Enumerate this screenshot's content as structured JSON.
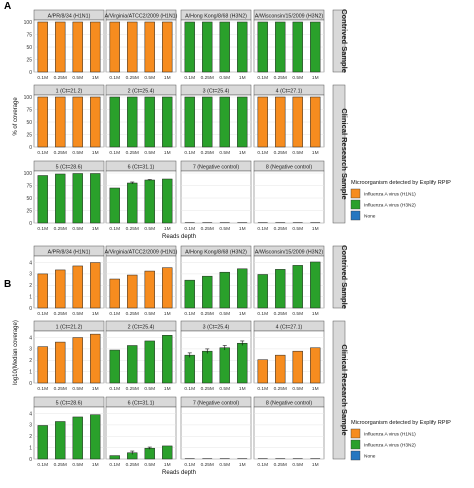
{
  "figure_labels": [
    "A",
    "B"
  ],
  "colors": {
    "H1N1": "#f68c1f",
    "H3N2": "#2aa02b",
    "None": "#2477c0"
  },
  "legend": {
    "title": "Microorganism detected by Explify RPIP",
    "items": [
      {
        "key": "H1N1",
        "label": "Influenza A virus (H1N1)"
      },
      {
        "key": "H3N2",
        "label": "Influenza A virus (H3N2)"
      },
      {
        "key": "None",
        "label": "None"
      }
    ]
  },
  "strip_right": {
    "contrived": "Contrived Sample",
    "clinical": "Clinical Research Sample"
  },
  "chart_data": [
    {
      "type": "bar",
      "panel_label": "A",
      "xlabel": "Reads depth",
      "ylabel": "% of coverage",
      "categories": [
        "0.1M",
        "0.25M",
        "0.5M",
        "1M"
      ],
      "ylim": [
        0,
        100
      ],
      "yticks": [
        0,
        25,
        50,
        75,
        100
      ],
      "facets": [
        {
          "title": "A/PR/8/34 (H1N1)",
          "organism": "H1N1",
          "values": [
            100,
            100,
            100,
            100
          ]
        },
        {
          "title": "A/Virginia/ATCC2/2009 (H1N1)",
          "organism": "H1N1",
          "values": [
            100,
            100,
            100,
            100
          ]
        },
        {
          "title": "A/Hong Kong/8/68 (H3N2)",
          "organism": "H3N2",
          "values": [
            100,
            100,
            100,
            100
          ]
        },
        {
          "title": "A/Wisconsin/15/2009 (H3N2)",
          "organism": "H3N2",
          "values": [
            100,
            100,
            100,
            100
          ]
        },
        {
          "title": "1 (Ct=21.2)",
          "organism": "H1N1",
          "values": [
            100,
            100,
            100,
            100
          ]
        },
        {
          "title": "2 (Ct=25.4)",
          "organism": "H3N2",
          "values": [
            100,
            100,
            100,
            100
          ]
        },
        {
          "title": "3 (Ct=25.4)",
          "organism": "H3N2",
          "values": [
            100,
            100,
            100,
            100
          ]
        },
        {
          "title": "4 (Ct=27.1)",
          "organism": "H1N1",
          "values": [
            100,
            100,
            100,
            100
          ]
        },
        {
          "title": "5 (Ct=28.6)",
          "organism": "H3N2",
          "values": [
            95,
            98,
            99,
            99
          ]
        },
        {
          "title": "6 (Ct=31.1)",
          "organism": "H3N2",
          "values": [
            70,
            80,
            86,
            88
          ],
          "error": [
            0,
            2,
            1,
            0
          ]
        },
        {
          "title": "7 (Negative control)",
          "organism": "None",
          "values": [
            0,
            0,
            0,
            0
          ]
        },
        {
          "title": "8 (Negative control)",
          "organism": "None",
          "values": [
            0,
            0,
            0,
            0
          ]
        }
      ]
    },
    {
      "type": "bar",
      "panel_label": "B",
      "xlabel": "Reads depth",
      "ylabel": "log10(Median coverage)",
      "categories": [
        "0.1M",
        "0.25M",
        "0.5M",
        "1M"
      ],
      "ylim": [
        0,
        4.4
      ],
      "yticks": [
        0,
        1,
        2,
        3,
        4
      ],
      "facets": [
        {
          "title": "A/PR/8/34 (H1N1)",
          "organism": "H1N1",
          "values": [
            3.0,
            3.35,
            3.7,
            4.0
          ]
        },
        {
          "title": "A/Virginia/ATCC2/2009 (H1N1)",
          "organism": "H1N1",
          "values": [
            2.55,
            2.9,
            3.25,
            3.55
          ]
        },
        {
          "title": "A/Hong Kong/8/68 (H3N2)",
          "organism": "H3N2",
          "values": [
            2.45,
            2.8,
            3.15,
            3.45
          ]
        },
        {
          "title": "A/Wisconsin/15/2009 (H3N2)",
          "organism": "H3N2",
          "values": [
            2.95,
            3.4,
            3.75,
            4.05
          ]
        },
        {
          "title": "1 (Ct=21.2)",
          "organism": "H1N1",
          "values": [
            3.2,
            3.6,
            4.0,
            4.3
          ]
        },
        {
          "title": "2 (Ct=25.4)",
          "organism": "H3N2",
          "values": [
            2.9,
            3.3,
            3.7,
            4.2
          ]
        },
        {
          "title": "3 (Ct=25.4)",
          "organism": "H3N2",
          "values": [
            2.45,
            2.8,
            3.1,
            3.5
          ],
          "error": [
            0.2,
            0.2,
            0.2,
            0.2
          ]
        },
        {
          "title": "4 (Ct=27.1)",
          "organism": "H1N1",
          "values": [
            2.05,
            2.45,
            2.8,
            3.1
          ]
        },
        {
          "title": "5 (Ct=28.6)",
          "organism": "H3N2",
          "values": [
            2.95,
            3.3,
            3.7,
            3.9
          ]
        },
        {
          "title": "6 (Ct=31.1)",
          "organism": "H3N2",
          "values": [
            0.3,
            0.55,
            0.95,
            1.15
          ],
          "error": [
            0,
            0.15,
            0.1,
            0
          ]
        },
        {
          "title": "7 (Negative control)",
          "organism": "None",
          "values": [
            0,
            0,
            0,
            0
          ]
        },
        {
          "title": "8 (Negative control)",
          "organism": "None",
          "values": [
            0,
            0,
            0,
            0
          ]
        }
      ]
    }
  ]
}
